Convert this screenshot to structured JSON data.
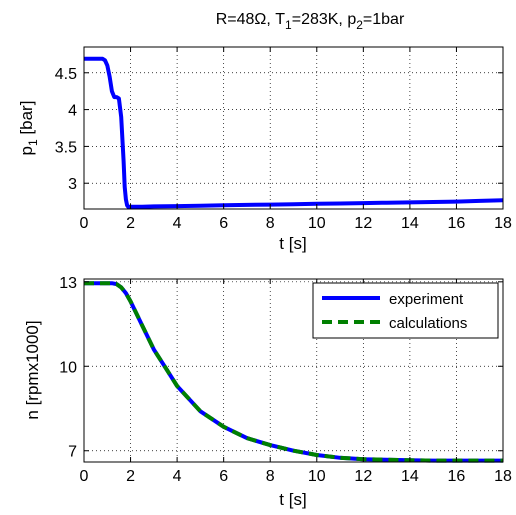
{
  "figure": {
    "title_parts": [
      "R=48Ω, T",
      "1",
      "=283K, p",
      "2",
      "=1bar"
    ]
  },
  "chart_data": [
    {
      "type": "line",
      "ylabel_main": "p",
      "ylabel_sub": "1",
      "ylabel_unit": " [bar]",
      "xlabel": "t [s]",
      "xlim": [
        0,
        18
      ],
      "ylim": [
        2.65,
        4.85
      ],
      "xticks": [
        0,
        2,
        4,
        6,
        8,
        10,
        12,
        14,
        16,
        18
      ],
      "yticks": [
        3,
        3.5,
        4,
        4.5
      ],
      "ytick_labels": [
        "3",
        "3.5",
        "4",
        "4.5"
      ],
      "grid": true,
      "series": [
        {
          "color": "#0000ff",
          "style": "solid",
          "x": [
            0,
            0.8,
            0.9,
            1.0,
            1.1,
            1.2,
            1.3,
            1.4,
            1.5,
            1.6,
            1.7,
            1.75,
            1.8,
            1.85,
            1.9,
            2.0,
            2.5,
            3,
            4,
            5,
            6,
            7,
            8,
            9,
            10,
            11,
            12,
            13,
            14,
            15,
            16,
            17,
            18
          ],
          "y": [
            4.69,
            4.69,
            4.67,
            4.6,
            4.45,
            4.25,
            4.17,
            4.17,
            4.15,
            3.9,
            3.3,
            2.95,
            2.78,
            2.7,
            2.68,
            2.68,
            2.68,
            2.685,
            2.69,
            2.695,
            2.7,
            2.705,
            2.71,
            2.715,
            2.72,
            2.725,
            2.73,
            2.735,
            2.74,
            2.745,
            2.75,
            2.76,
            2.77
          ]
        }
      ]
    },
    {
      "type": "line",
      "ylabel": "n [rpmx1000]",
      "xlabel": "t [s]",
      "xlim": [
        0,
        18
      ],
      "ylim": [
        6.6,
        13.1
      ],
      "xticks": [
        0,
        2,
        4,
        6,
        8,
        10,
        12,
        14,
        16,
        18
      ],
      "yticks": [
        7,
        10,
        13
      ],
      "ytick_labels": [
        "7",
        "10",
        "13"
      ],
      "grid": true,
      "legend_position": "top-right",
      "series": [
        {
          "name": "experiment",
          "color": "#0000ff",
          "style": "solid",
          "x": [
            0,
            1.2,
            1.4,
            1.6,
            1.8,
            2,
            2.5,
            3,
            3.5,
            4,
            5,
            6,
            7,
            8,
            9,
            10,
            11,
            12,
            13,
            14,
            15,
            16,
            17,
            18
          ],
          "y": [
            12.95,
            12.95,
            12.92,
            12.8,
            12.6,
            12.3,
            11.45,
            10.6,
            9.95,
            9.3,
            8.4,
            7.85,
            7.45,
            7.2,
            7.0,
            6.85,
            6.75,
            6.7,
            6.68,
            6.66,
            6.65,
            6.65,
            6.65,
            6.65
          ]
        },
        {
          "name": "calculations",
          "color": "#008000",
          "style": "dashed",
          "x": [
            0,
            1.2,
            1.4,
            1.6,
            1.8,
            2,
            2.5,
            3,
            3.5,
            4,
            5,
            6,
            7,
            8,
            9,
            10,
            11,
            12,
            13,
            14,
            15,
            16,
            17,
            18
          ],
          "y": [
            12.95,
            12.95,
            12.92,
            12.8,
            12.6,
            12.3,
            11.45,
            10.6,
            9.95,
            9.3,
            8.4,
            7.85,
            7.45,
            7.2,
            7.0,
            6.85,
            6.75,
            6.7,
            6.68,
            6.66,
            6.65,
            6.65,
            6.65,
            6.65
          ]
        }
      ]
    }
  ]
}
